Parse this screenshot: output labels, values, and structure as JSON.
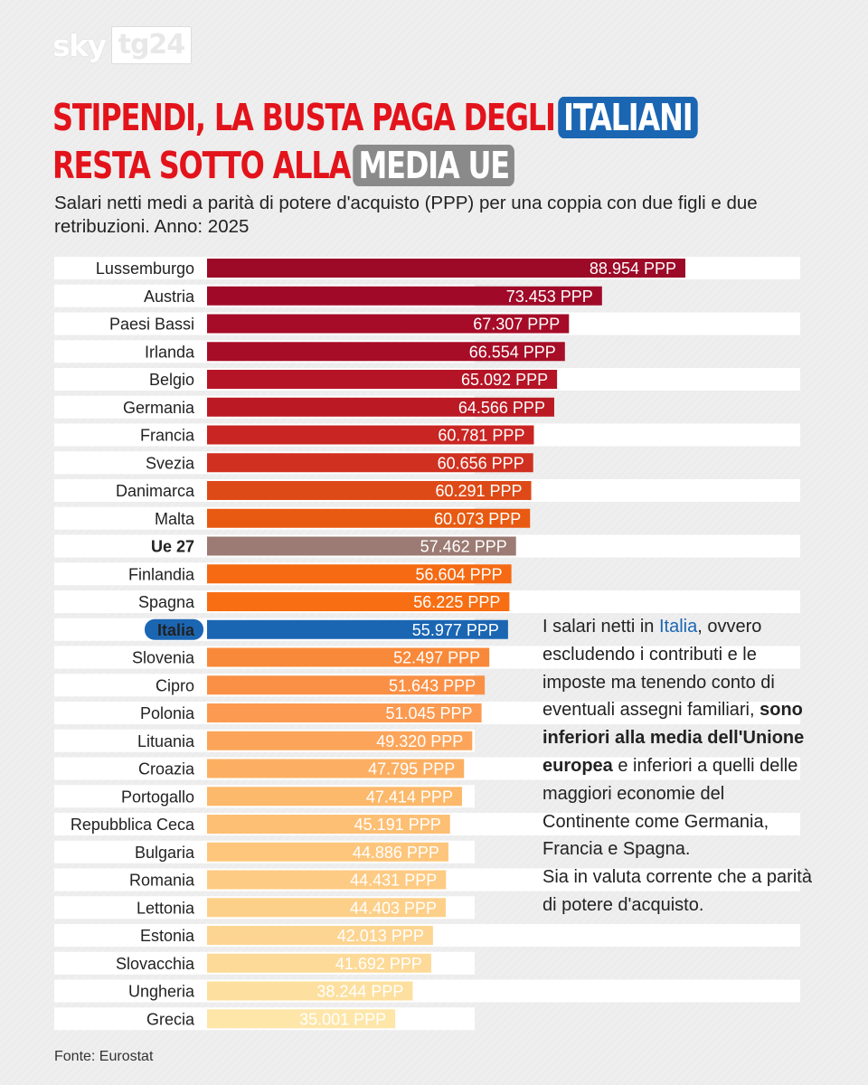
{
  "logo": {
    "brand": "sky",
    "channel": "tg24"
  },
  "title": {
    "line1": "STIPENDI, LA BUSTA PAGA DEGLI",
    "line1_highlight": "ITALIANI",
    "line2": "RESTA SOTTO ALLA",
    "line2_highlight": "MEDIA UE"
  },
  "subtitle": "Salari netti medi a parità di potere d'acquisto (PPP) per una coppia con due figli e due retribuzioni. Anno: 2025",
  "side_text": {
    "p1_a": "I salari netti in ",
    "p1_italia": "Italia",
    "p1_b": ", ovvero escludendo i contributi e le imposte ma tenendo conto di eventuali assegni familiari, ",
    "p1_bold": "sono inferiori alla media dell'Unione europea",
    "p1_c": " e inferiori a quelli delle maggiori economie del Continente come Germania, Francia e Spagna.",
    "p2": "Sia in valuta corrente che a parità di potere d'acquisto."
  },
  "source": "Fonte: Eurostat",
  "colors": {
    "red": "#e3131b",
    "blue": "#1b66b3",
    "eu": "#9b7b73"
  },
  "chart_data": {
    "type": "bar",
    "orientation": "horizontal",
    "unit": "PPP",
    "categories": [
      "Lussemburgo",
      "Austria",
      "Paesi Bassi",
      "Irlanda",
      "Belgio",
      "Germania",
      "Francia",
      "Svezia",
      "Danimarca",
      "Malta",
      "Ue 27",
      "Finlandia",
      "Spagna",
      "Italia",
      "Slovenia",
      "Cipro",
      "Polonia",
      "Lituania",
      "Croazia",
      "Portogallo",
      "Repubblica Ceca",
      "Bulgaria",
      "Romania",
      "Lettonia",
      "Estonia",
      "Slovacchia",
      "Ungheria",
      "Grecia"
    ],
    "values": [
      88954,
      73453,
      67307,
      66554,
      65092,
      64566,
      60781,
      60656,
      60291,
      60073,
      57462,
      56604,
      56225,
      55977,
      52497,
      51643,
      51045,
      49320,
      47795,
      47414,
      45191,
      44886,
      44431,
      44403,
      42013,
      41692,
      38244,
      35001
    ],
    "labels": [
      "88.954 PPP",
      "73.453 PPP",
      "67.307 PPP",
      "66.554 PPP",
      "65.092 PPP",
      "64.566 PPP",
      "60.781 PPP",
      "60.656 PPP",
      "60.291 PPP",
      "60.073 PPP",
      "57.462 PPP",
      "56.604 PPP",
      "56.225 PPP",
      "55.977 PPP",
      "52.497 PPP",
      "51.643 PPP",
      "51.045 PPP",
      "49.320 PPP",
      "47.795 PPP",
      "47.414 PPP",
      "45.191 PPP",
      "44.886 PPP",
      "44.431 PPP",
      "44.403 PPP",
      "42.013 PPP",
      "41.692 PPP",
      "38.244 PPP",
      "35.001 PPP"
    ],
    "colors": [
      "#9c0a28",
      "#a00a28",
      "#a60c27",
      "#a80d27",
      "#b41425",
      "#bb1a24",
      "#c92522",
      "#d03020",
      "#de4a17",
      "#e85a12",
      "#9b7b73",
      "#f56a12",
      "#f86e12",
      "#1b66b3",
      "#f9893a",
      "#fa9046",
      "#fb9a50",
      "#fca55a",
      "#fcaf62",
      "#fcb96b",
      "#fdbf74",
      "#fdc67c",
      "#fdcb83",
      "#fdd08a",
      "#fdd592",
      "#fdda98",
      "#fde09f",
      "#fde6a8"
    ],
    "highlighted": [
      "Ue 27",
      "Italia"
    ],
    "xlim": [
      0,
      88954
    ],
    "grid": false
  }
}
